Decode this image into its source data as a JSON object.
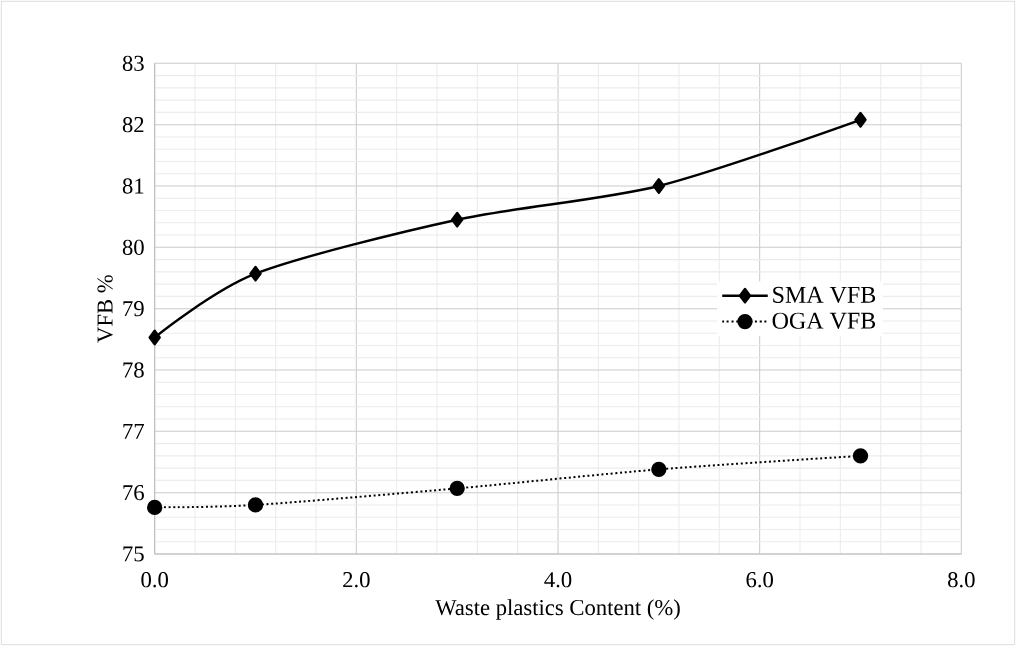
{
  "chart_data": {
    "type": "line",
    "xlabel": "Waste plastics Content (%)",
    "ylabel": "VFB %",
    "xlim": [
      0,
      8
    ],
    "ylim": [
      75,
      83
    ],
    "xticks": [
      {
        "value": 0,
        "label": "0.0"
      },
      {
        "value": 2,
        "label": "2.0"
      },
      {
        "value": 4,
        "label": "4.0"
      },
      {
        "value": 6,
        "label": "6.0"
      },
      {
        "value": 8,
        "label": "8.0"
      }
    ],
    "yticks": [
      75,
      76,
      77,
      78,
      79,
      80,
      81,
      82,
      83
    ],
    "grid": true,
    "legend": "right",
    "series": [
      {
        "name": "SMA VFB",
        "color": "#000000",
        "marker": "diamond",
        "line_style": "solid",
        "x": [
          0,
          1,
          3,
          5,
          7
        ],
        "values": [
          78.53,
          79.57,
          80.45,
          81.0,
          82.08
        ]
      },
      {
        "name": "OGA VFB",
        "color": "#000000",
        "marker": "circle",
        "line_style": "dotted",
        "x": [
          0,
          1,
          3,
          5,
          7
        ],
        "values": [
          75.76,
          75.8,
          76.07,
          76.38,
          76.6
        ]
      }
    ]
  }
}
